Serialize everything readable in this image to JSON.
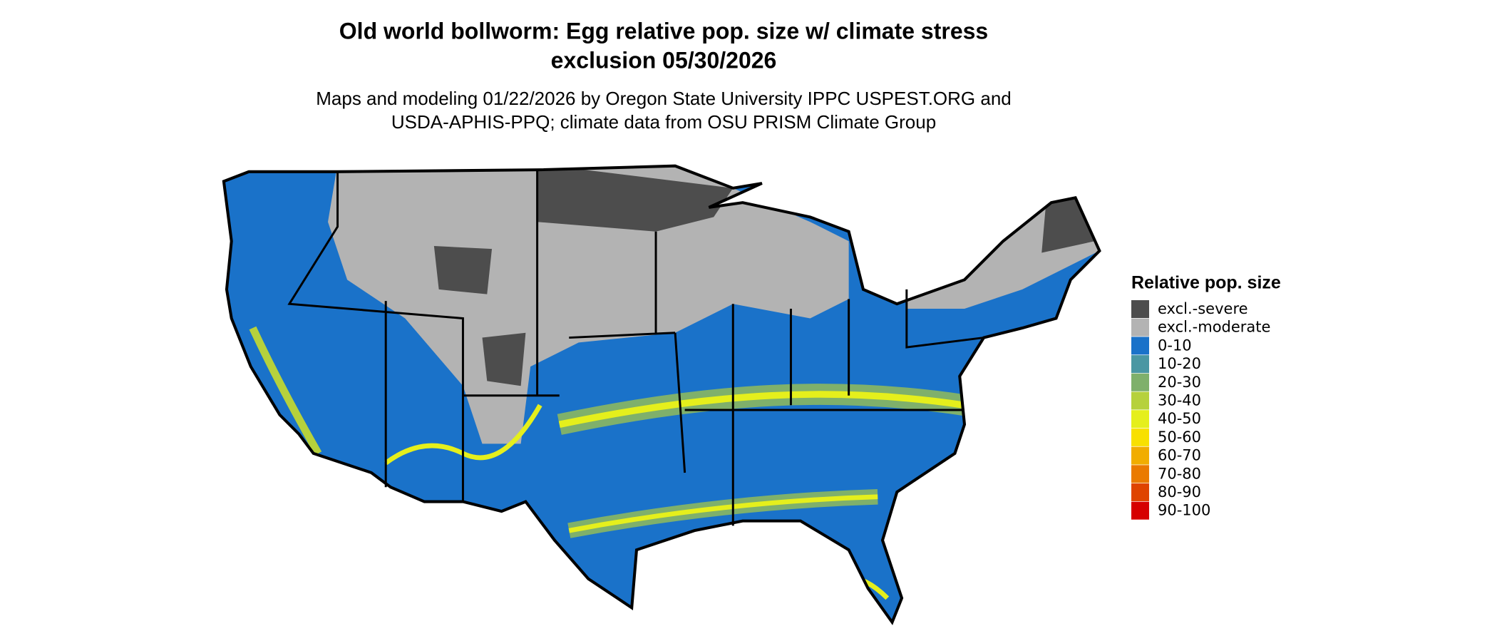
{
  "title_lines": [
    "Old world bollworm: Egg relative pop. size w/ climate stress",
    "exclusion 05/30/2026"
  ],
  "subtitle_lines": [
    "Maps and modeling 01/22/2026 by Oregon State University IPPC USPEST.ORG and",
    "USDA-APHIS-PPQ; climate data from OSU PRISM Climate Group"
  ],
  "legend": {
    "title": "Relative pop. size",
    "items": [
      {
        "label": "excl.-severe",
        "color": "#4d4d4d"
      },
      {
        "label": "excl.-moderate",
        "color": "#b3b3b3"
      },
      {
        "label": "0-10",
        "color": "#1a72c9"
      },
      {
        "label": "10-20",
        "color": "#4a97a3"
      },
      {
        "label": "20-30",
        "color": "#7fb06b"
      },
      {
        "label": "30-40",
        "color": "#b6d13c"
      },
      {
        "label": "40-50",
        "color": "#e5ef1c"
      },
      {
        "label": "50-60",
        "color": "#f8e000"
      },
      {
        "label": "60-70",
        "color": "#f1ad00"
      },
      {
        "label": "70-80",
        "color": "#ea7a00"
      },
      {
        "label": "80-90",
        "color": "#df4400"
      },
      {
        "label": "90-100",
        "color": "#d60000"
      }
    ]
  }
}
